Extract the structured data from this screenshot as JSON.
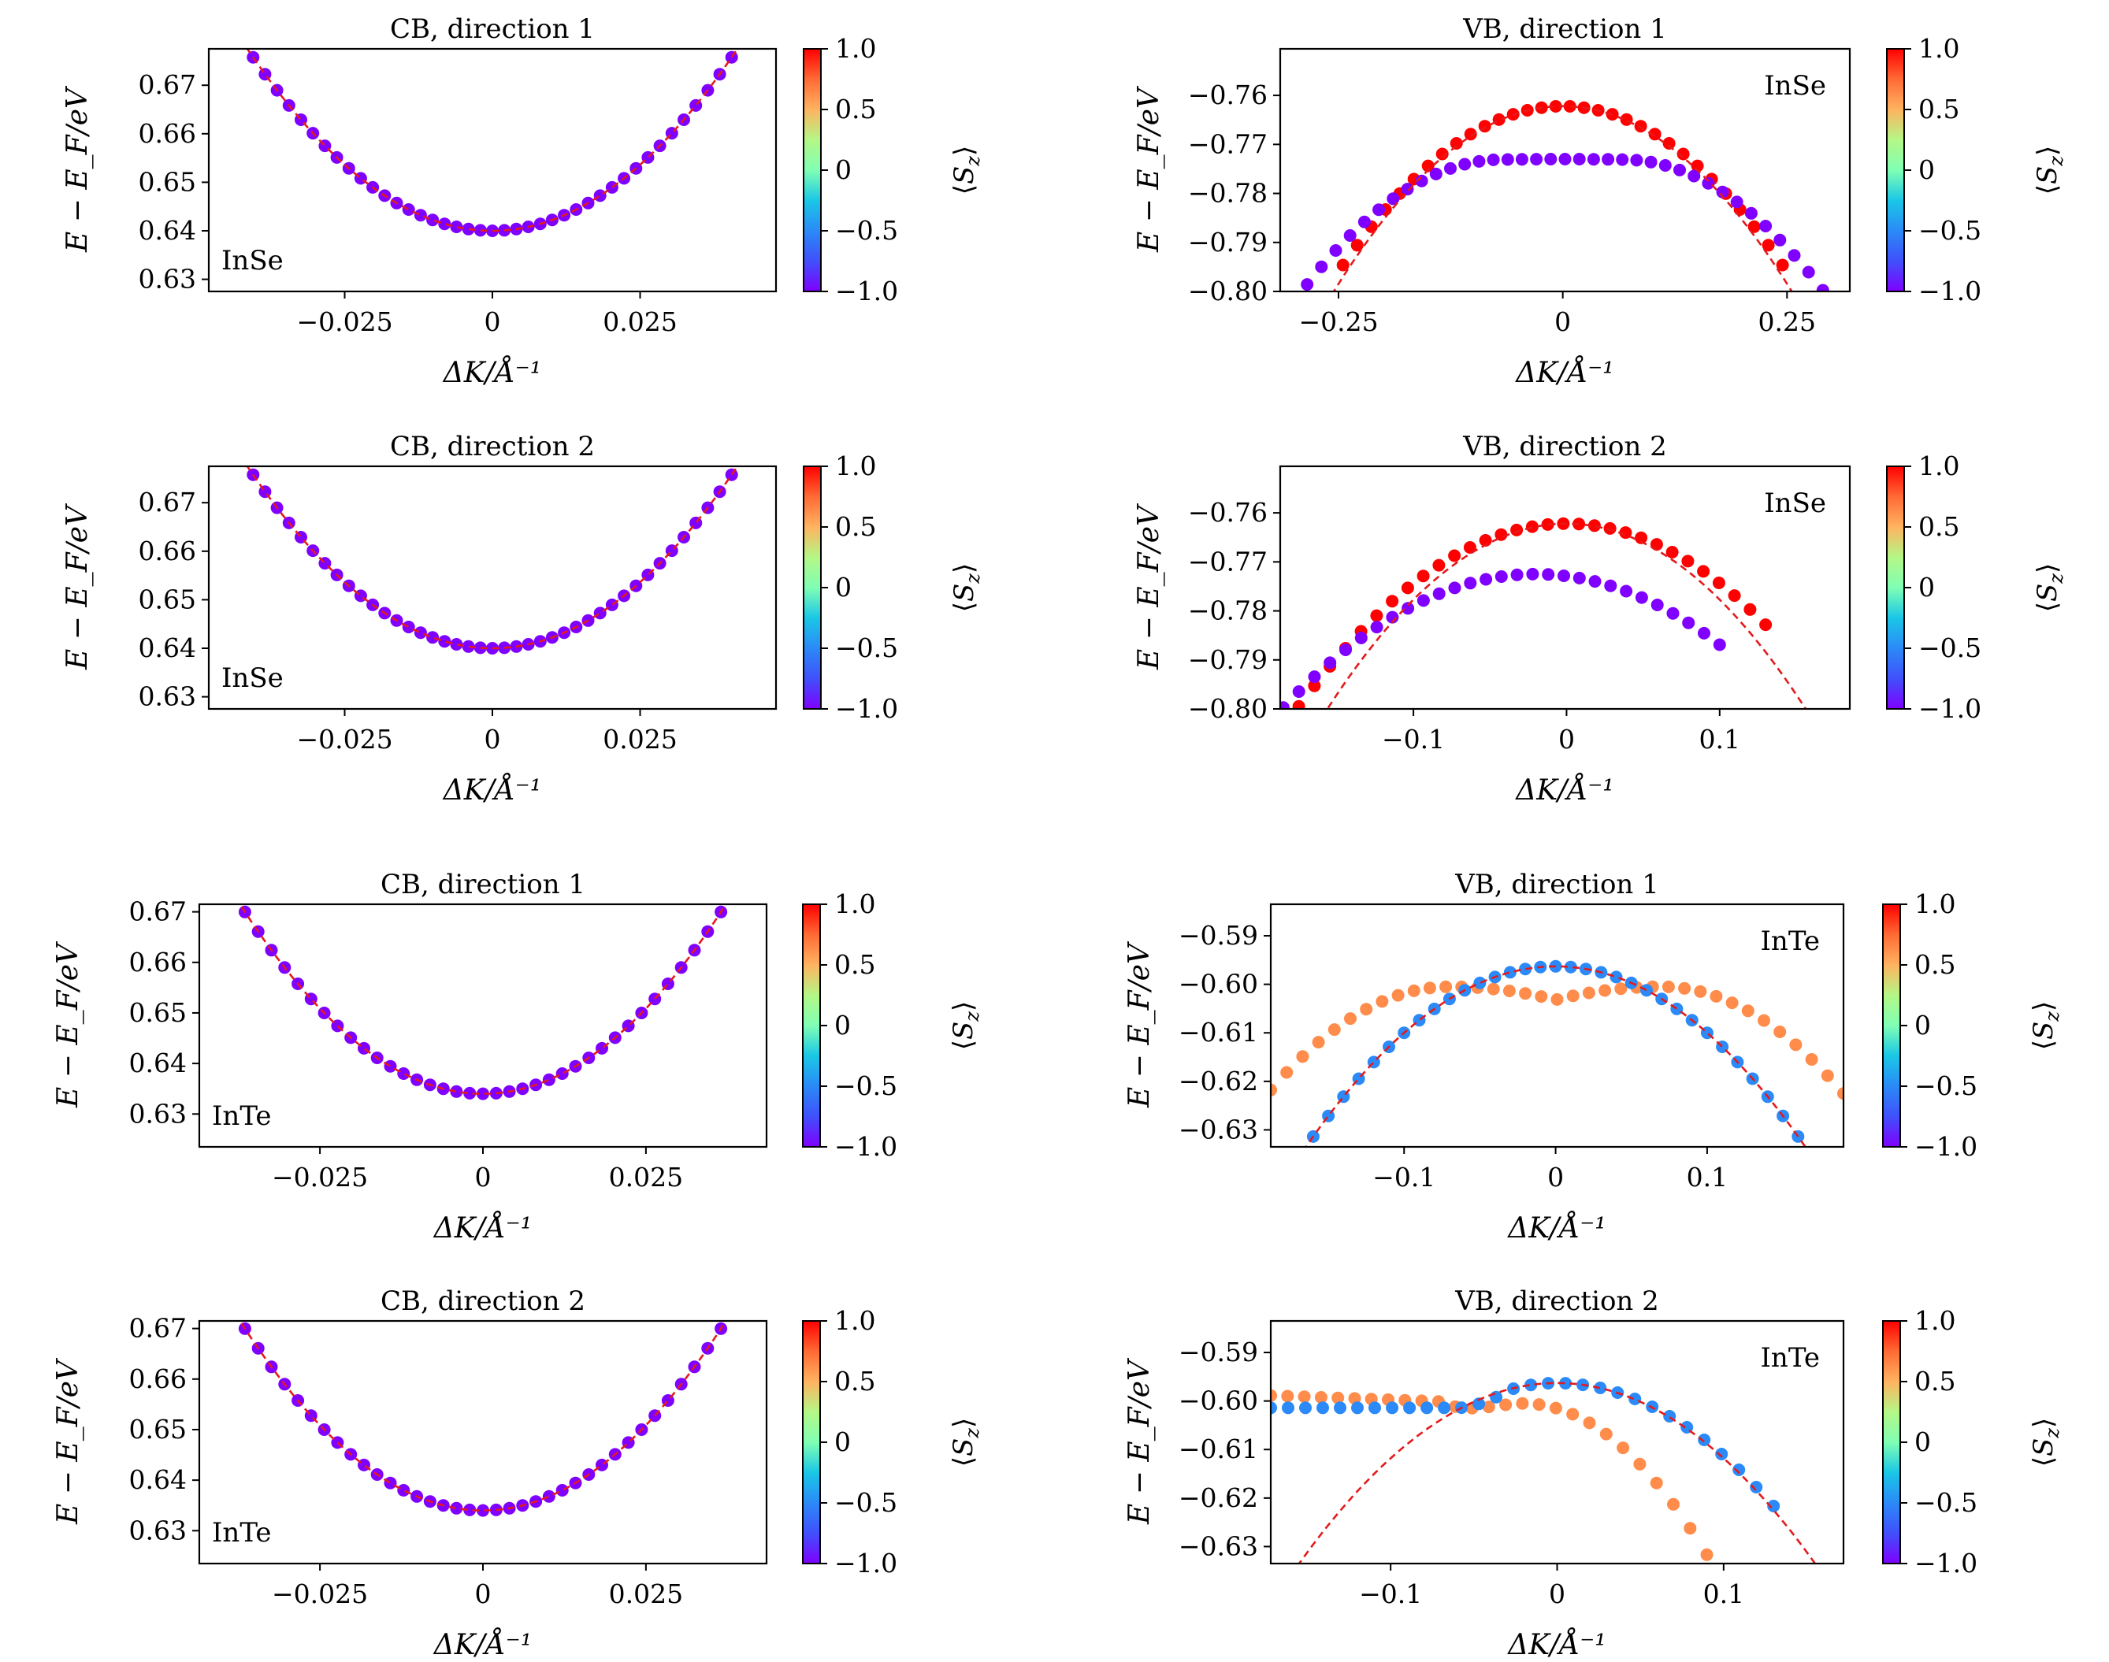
{
  "figure": {
    "panel_rows": 4,
    "panel_cols": 2
  },
  "colorbar": {
    "label": "⟨S_z⟩",
    "ticks": [
      -1.0,
      -0.5,
      0,
      0.5,
      1.0
    ],
    "tick_labels": [
      "−1.0",
      "−0.5",
      "0",
      "0.5",
      "1.0"
    ],
    "colormap": "rainbow"
  },
  "spin_colors": {
    "-1.0": "#7f00ff",
    "-0.5": "#2b8af7",
    "0.5": "#ff8c4a",
    "1.0": "#ff0000",
    "fit": "#e41a1c"
  },
  "chart_data": [
    {
      "id": "cb1-inse",
      "type": "scatter",
      "title": "CB, direction 1",
      "xlabel": "ΔK/Å⁻¹",
      "ylabel": "E − E_F/eV",
      "annotation": "InSe",
      "xlim": [
        -0.048,
        0.048
      ],
      "ylim": [
        0.6275,
        0.6775
      ],
      "xticks": [
        -0.025,
        0,
        0.025
      ],
      "xtick_labels": [
        "−0.025",
        "0",
        "0.025"
      ],
      "yticks": [
        0.63,
        0.64,
        0.65,
        0.66,
        0.67
      ],
      "ytick_labels": [
        "0.63",
        "0.64",
        "0.65",
        "0.66",
        "0.67"
      ],
      "fit": {
        "type": "parabola",
        "k0": 0,
        "E0": 0.64,
        "curvature": 21.8
      },
      "series": [
        {
          "spin": -1.0,
          "E0": 0.64,
          "k0": 0,
          "curvature": 21.8,
          "x_range": [
            -0.0405,
            0.0405
          ],
          "n": 41
        }
      ]
    },
    {
      "id": "vb1-inse",
      "type": "scatter",
      "title": "VB, direction 1",
      "xlabel": "ΔK/Å⁻¹",
      "ylabel": "E − E_F/eV",
      "annotation": "InSe",
      "xlim": [
        -0.315,
        0.32
      ],
      "ylim": [
        -0.8,
        -0.7505
      ],
      "xticks": [
        -0.25,
        0,
        0.25
      ],
      "xtick_labels": [
        "−0.25",
        "0",
        "0.25"
      ],
      "yticks": [
        -0.8,
        -0.79,
        -0.78,
        -0.77,
        -0.76
      ],
      "ytick_labels": [
        "−0.80",
        "−0.79",
        "−0.78",
        "−0.77",
        "−0.76"
      ],
      "fit": {
        "type": "parabola",
        "k0": 0,
        "E0": -0.7622,
        "curvature": -0.58
      },
      "series": [
        {
          "spin": 1.0,
          "E0": -0.7622,
          "k0": 0,
          "curvature": -0.54,
          "x_range": [
            -0.245,
            0.245
          ],
          "n": 32
        },
        {
          "spin": -1.0,
          "E0": -0.773,
          "k0": 0,
          "quartic": [
            0.5,
            12.8
          ],
          "x_range": [
            -0.285,
            0.29
          ],
          "n": 37
        }
      ]
    },
    {
      "id": "cb2-inse",
      "type": "scatter",
      "title": "CB, direction 2",
      "xlabel": "ΔK/Å⁻¹",
      "ylabel": "E − E_F/eV",
      "annotation": "InSe",
      "xlim": [
        -0.048,
        0.048
      ],
      "ylim": [
        0.6275,
        0.6775
      ],
      "xticks": [
        -0.025,
        0,
        0.025
      ],
      "xtick_labels": [
        "−0.025",
        "0",
        "0.025"
      ],
      "yticks": [
        0.63,
        0.64,
        0.65,
        0.66,
        0.67
      ],
      "ytick_labels": [
        "0.63",
        "0.64",
        "0.65",
        "0.66",
        "0.67"
      ],
      "fit": {
        "type": "parabola",
        "k0": 0,
        "E0": 0.64,
        "curvature": 21.8
      },
      "series": [
        {
          "spin": -1.0,
          "E0": 0.64,
          "k0": 0,
          "curvature": 21.8,
          "x_range": [
            -0.0405,
            0.0405
          ],
          "n": 41
        }
      ]
    },
    {
      "id": "vb2-inse",
      "type": "scatter",
      "title": "VB, direction 2",
      "xlabel": "ΔK/Å⁻¹",
      "ylabel": "E − E_F/eV",
      "annotation": "InSe",
      "xlim": [
        -0.187,
        0.185
      ],
      "ylim": [
        -0.8,
        -0.7505
      ],
      "xticks": [
        -0.1,
        0,
        0.1
      ],
      "xtick_labels": [
        "−0.1",
        "0",
        "0.1"
      ],
      "yticks": [
        -0.8,
        -0.79,
        -0.78,
        -0.77,
        -0.76
      ],
      "ytick_labels": [
        "−0.80",
        "−0.79",
        "−0.78",
        "−0.77",
        "−0.76"
      ],
      "fit": {
        "type": "parabola",
        "k0": 0,
        "E0": -0.7622,
        "curvature": -1.55
      },
      "series": [
        {
          "spin": 1.0,
          "E0": -0.7622,
          "k0": 0,
          "curvature": -1.22,
          "x_range": [
            -0.185,
            0.13
          ],
          "n": 32
        },
        {
          "spin": -1.0,
          "E0": -0.7725,
          "k0": -0.02,
          "curvature": -1.0,
          "x_range": [
            -0.185,
            0.1
          ],
          "n": 29
        }
      ]
    },
    {
      "id": "cb1-inte",
      "type": "scatter",
      "title": "CB, direction 1",
      "xlabel": "ΔK/Å⁻¹",
      "ylabel": "E − E_F/eV",
      "annotation": "InTe",
      "xlim": [
        -0.0435,
        0.0435
      ],
      "ylim": [
        0.6235,
        0.6715
      ],
      "xticks": [
        -0.025,
        0,
        0.025
      ],
      "xtick_labels": [
        "−0.025",
        "0",
        "0.025"
      ],
      "yticks": [
        0.63,
        0.64,
        0.65,
        0.66,
        0.67
      ],
      "ytick_labels": [
        "0.63",
        "0.64",
        "0.65",
        "0.66",
        "0.67"
      ],
      "fit": {
        "type": "parabola",
        "k0": 0,
        "E0": 0.634,
        "curvature": 27.0
      },
      "series": [
        {
          "spin": -1.0,
          "E0": 0.634,
          "k0": 0,
          "curvature": 27.0,
          "x_range": [
            -0.0365,
            0.0365
          ],
          "n": 37
        }
      ]
    },
    {
      "id": "vb1-inte",
      "type": "scatter",
      "title": "VB, direction 1",
      "xlabel": "ΔK/Å⁻¹",
      "ylabel": "E − E_F/eV",
      "annotation": "InTe",
      "xlim": [
        -0.188,
        0.19
      ],
      "ylim": [
        -0.6335,
        -0.5835
      ],
      "xticks": [
        -0.1,
        0,
        0.1
      ],
      "xtick_labels": [
        "−0.1",
        "0",
        "0.1"
      ],
      "yticks": [
        -0.63,
        -0.62,
        -0.61,
        -0.6,
        -0.59
      ],
      "ytick_labels": [
        "−0.63",
        "−0.62",
        "−0.61",
        "−0.60",
        "−0.59"
      ],
      "fit": {
        "type": "parabola",
        "k0": 0,
        "E0": -0.5963,
        "curvature": -1.37
      },
      "series": [
        {
          "spin": 0.5,
          "E0": -0.6032,
          "k0": 0,
          "quartic": [
            0.4,
            -78
          ],
          "x_range": [
            -0.188,
            0.19
          ],
          "n": 37
        },
        {
          "spin": -0.5,
          "E0": -0.5963,
          "k0": 0,
          "curvature": -1.37,
          "x_range": [
            -0.16,
            0.16
          ],
          "n": 33
        }
      ]
    },
    {
      "id": "cb2-inte",
      "type": "scatter",
      "title": "CB, direction 2",
      "xlabel": "ΔK/Å⁻¹",
      "ylabel": "E − E_F/eV",
      "annotation": "InTe",
      "xlim": [
        -0.0435,
        0.0435
      ],
      "ylim": [
        0.6235,
        0.6715
      ],
      "xticks": [
        -0.025,
        0,
        0.025
      ],
      "xtick_labels": [
        "−0.025",
        "0",
        "0.025"
      ],
      "yticks": [
        0.63,
        0.64,
        0.65,
        0.66,
        0.67
      ],
      "ytick_labels": [
        "0.63",
        "0.64",
        "0.65",
        "0.66",
        "0.67"
      ],
      "fit": {
        "type": "parabola",
        "k0": 0,
        "E0": 0.634,
        "curvature": 27.0
      },
      "series": [
        {
          "spin": -1.0,
          "E0": 0.634,
          "k0": 0,
          "curvature": 27.0,
          "x_range": [
            -0.0365,
            0.0365
          ],
          "n": 37
        }
      ]
    },
    {
      "id": "vb2-inte",
      "type": "scatter",
      "title": "VB, direction 2",
      "xlabel": "ΔK/Å⁻¹",
      "ylabel": "E − E_F/eV",
      "annotation": "InTe",
      "xlim": [
        -0.172,
        0.172
      ],
      "ylim": [
        -0.6335,
        -0.5835
      ],
      "xticks": [
        -0.1,
        0,
        0.1
      ],
      "xtick_labels": [
        "−0.1",
        "0",
        "0.1"
      ],
      "yticks": [
        -0.63,
        -0.62,
        -0.61,
        -0.6,
        -0.59
      ],
      "ytick_labels": [
        "−0.63",
        "−0.62",
        "−0.61",
        "−0.60",
        "−0.59"
      ],
      "fit": {
        "type": "parabola",
        "k0": 0,
        "E0": -0.5963,
        "curvature": -1.55
      },
      "series": [
        {
          "spin": 0.5,
          "E0": -0.6005,
          "k0": -0.02,
          "curvature": -2.58,
          "flat_left": {
            "x": -0.07,
            "E": -0.6001
          },
          "x_range": [
            -0.172,
            0.1
          ],
          "n": 28
        },
        {
          "spin": -0.5,
          "E0": -0.5963,
          "k0": 0,
          "curvature": -1.5,
          "flat_left": {
            "x": -0.065,
            "E": -0.6014
          },
          "x_range": [
            -0.172,
            0.13
          ],
          "n": 30
        }
      ]
    }
  ]
}
